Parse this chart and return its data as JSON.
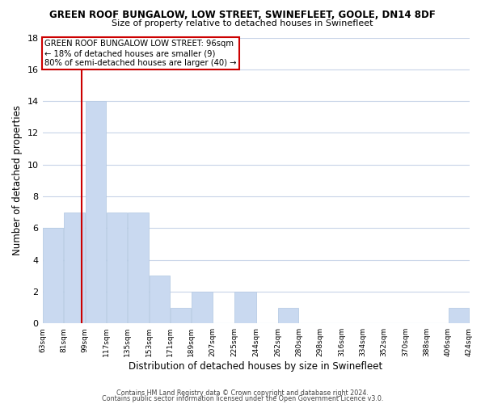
{
  "title": "GREEN ROOF BUNGALOW, LOW STREET, SWINEFLEET, GOOLE, DN14 8DF",
  "subtitle": "Size of property relative to detached houses in Swinefleet",
  "xlabel": "Distribution of detached houses by size in Swinefleet",
  "ylabel": "Number of detached properties",
  "bins": [
    63,
    81,
    99,
    117,
    135,
    153,
    171,
    189,
    207,
    225,
    244,
    262,
    280,
    298,
    316,
    334,
    352,
    370,
    388,
    406,
    424
  ],
  "counts": [
    6,
    7,
    14,
    7,
    7,
    3,
    1,
    2,
    0,
    2,
    0,
    1,
    0,
    0,
    0,
    0,
    0,
    0,
    0,
    1
  ],
  "bar_color": "#c9d9f0",
  "bar_edge_color": "#b8cce4",
  "ref_line_x": 96,
  "ref_line_color": "#cc0000",
  "annotation_line1": "GREEN ROOF BUNGALOW LOW STREET: 96sqm",
  "annotation_line2": "← 18% of detached houses are smaller (9)",
  "annotation_line3": "80% of semi-detached houses are larger (40) →",
  "annotation_box_edge": "#cc0000",
  "ylim": [
    0,
    18
  ],
  "yticks": [
    0,
    2,
    4,
    6,
    8,
    10,
    12,
    14,
    16,
    18
  ],
  "tick_labels": [
    "63sqm",
    "81sqm",
    "99sqm",
    "117sqm",
    "135sqm",
    "153sqm",
    "171sqm",
    "189sqm",
    "207sqm",
    "225sqm",
    "244sqm",
    "262sqm",
    "280sqm",
    "298sqm",
    "316sqm",
    "334sqm",
    "352sqm",
    "370sqm",
    "388sqm",
    "406sqm",
    "424sqm"
  ],
  "footer1": "Contains HM Land Registry data © Crown copyright and database right 2024.",
  "footer2": "Contains public sector information licensed under the Open Government Licence v3.0.",
  "bg_color": "#ffffff",
  "grid_color": "#c8d4e8",
  "title_fontsize": 8.5,
  "subtitle_fontsize": 8.0
}
